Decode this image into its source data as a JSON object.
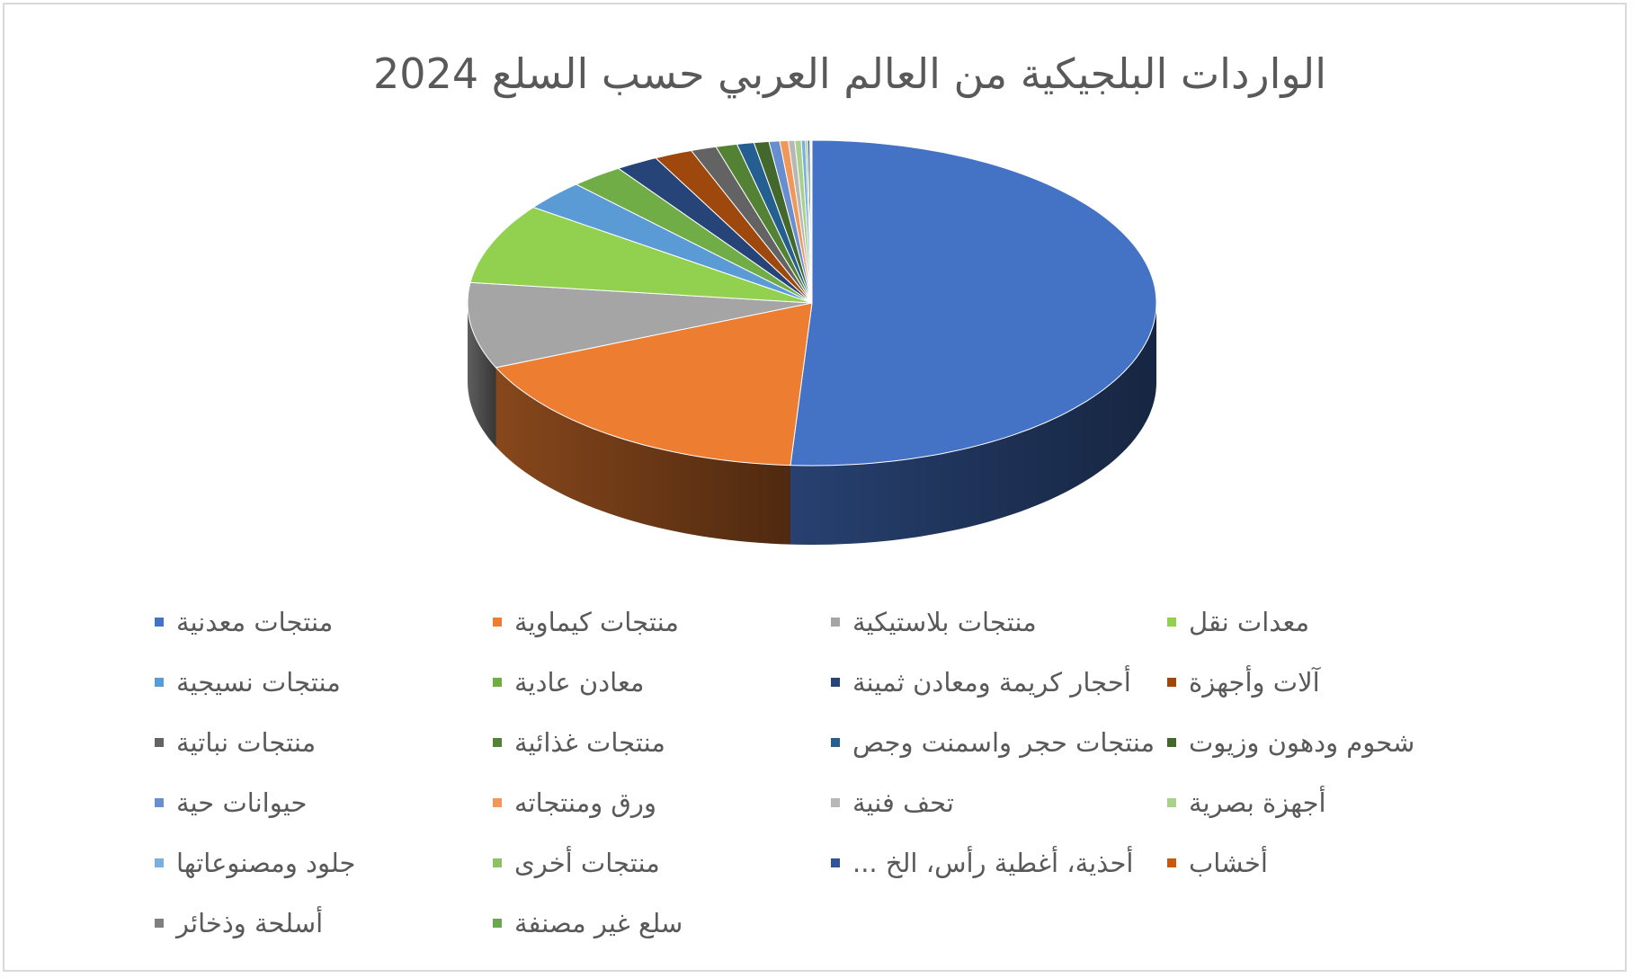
{
  "chart_data": {
    "type": "pie",
    "title": "الواردات البلجيكية من العالم العربي حسب السلع 2024",
    "legend_position": "bottom",
    "grid": false,
    "categories": [
      "منتجات معدنية",
      "منتجات كيماوية",
      "منتجات بلاستيكية",
      "معدات نقل",
      "منتجات نسيجية",
      "معادن عادية",
      "أحجار كريمة ومعادن ثمينة",
      "آلات وأجهزة",
      "منتجات نباتية",
      "منتجات غذائية",
      "منتجات حجر واسمنت وجص",
      "شحوم ودهون وزيوت",
      "حيوانات حية",
      "ورق ومنتجاته",
      "تحف فنية",
      "أجهزة بصرية",
      "جلود ومصنوعاتها",
      "منتجات أخرى",
      "أحذية، أغطية رأس، الخ ...",
      "أخشاب",
      "أسلحة وذخائر",
      "سلع غير مصنفة"
    ],
    "values": [
      51.0,
      17.5,
      8.5,
      8.0,
      3.0,
      2.5,
      2.0,
      1.8,
      1.2,
      1.0,
      0.8,
      0.7,
      0.5,
      0.4,
      0.3,
      0.3,
      0.2,
      0.1,
      0.1,
      0.05,
      0.03,
      0.02
    ],
    "colors": [
      "#4472c4",
      "#ed7d31",
      "#a5a5a5",
      "#92d050",
      "#5b9bd5",
      "#70ad47",
      "#264478",
      "#9e480e",
      "#636363",
      "#548235",
      "#255e91",
      "#43682b",
      "#698ed0",
      "#f1975a",
      "#b7b7b7",
      "#a9d18e",
      "#7cafdd",
      "#8cc168",
      "#2f5597",
      "#c55a11",
      "#7f7f7f",
      "#6aa84f"
    ]
  }
}
